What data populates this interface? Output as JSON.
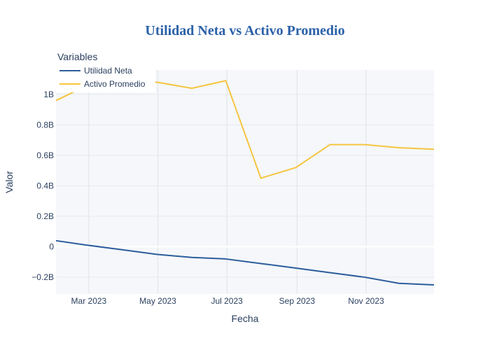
{
  "chart_data": {
    "type": "line",
    "title": "Utilidad Neta vs Activo Promedio",
    "xlabel": "Fecha",
    "ylabel": "Valor",
    "legend_title": "Variables",
    "legend_position": "top-left",
    "grid": true,
    "x": [
      "2023-01-31",
      "2023-02-28",
      "2023-03-31",
      "2023-04-30",
      "2023-05-31",
      "2023-06-30",
      "2023-07-31",
      "2023-08-31",
      "2023-09-30",
      "2023-10-31",
      "2023-11-30",
      "2023-12-31"
    ],
    "xlim": [
      "2023-01-31",
      "2023-12-31"
    ],
    "ylim": [
      -0.31,
      1.16
    ],
    "x_ticks": [
      "2023-03-01",
      "2023-05-01",
      "2023-07-01",
      "2023-09-01",
      "2023-11-01"
    ],
    "x_tick_labels": [
      "Mar 2023",
      "May 2023",
      "Jul 2023",
      "Sep 2023",
      "Nov 2023"
    ],
    "y_ticks": [
      -0.2,
      0,
      0.2,
      0.4,
      0.6,
      0.8,
      1.0
    ],
    "y_tick_labels": [
      "−0.2B",
      "0",
      "0.2B",
      "0.4B",
      "0.6B",
      "0.8B",
      "1B"
    ],
    "y_unit": "billions",
    "series": [
      {
        "name": "Utilidad Neta",
        "color": "#2b5d9b",
        "values": [
          0.04,
          0.01,
          -0.02,
          -0.05,
          -0.07,
          -0.08,
          -0.11,
          -0.14,
          -0.17,
          -0.2,
          -0.24,
          -0.25
        ]
      },
      {
        "name": "Activo Promedio",
        "color": "#f5c540",
        "values": [
          0.96,
          1.06,
          1.07,
          1.08,
          1.04,
          1.09,
          0.45,
          0.52,
          0.67,
          0.67,
          0.65,
          0.64
        ]
      }
    ]
  }
}
